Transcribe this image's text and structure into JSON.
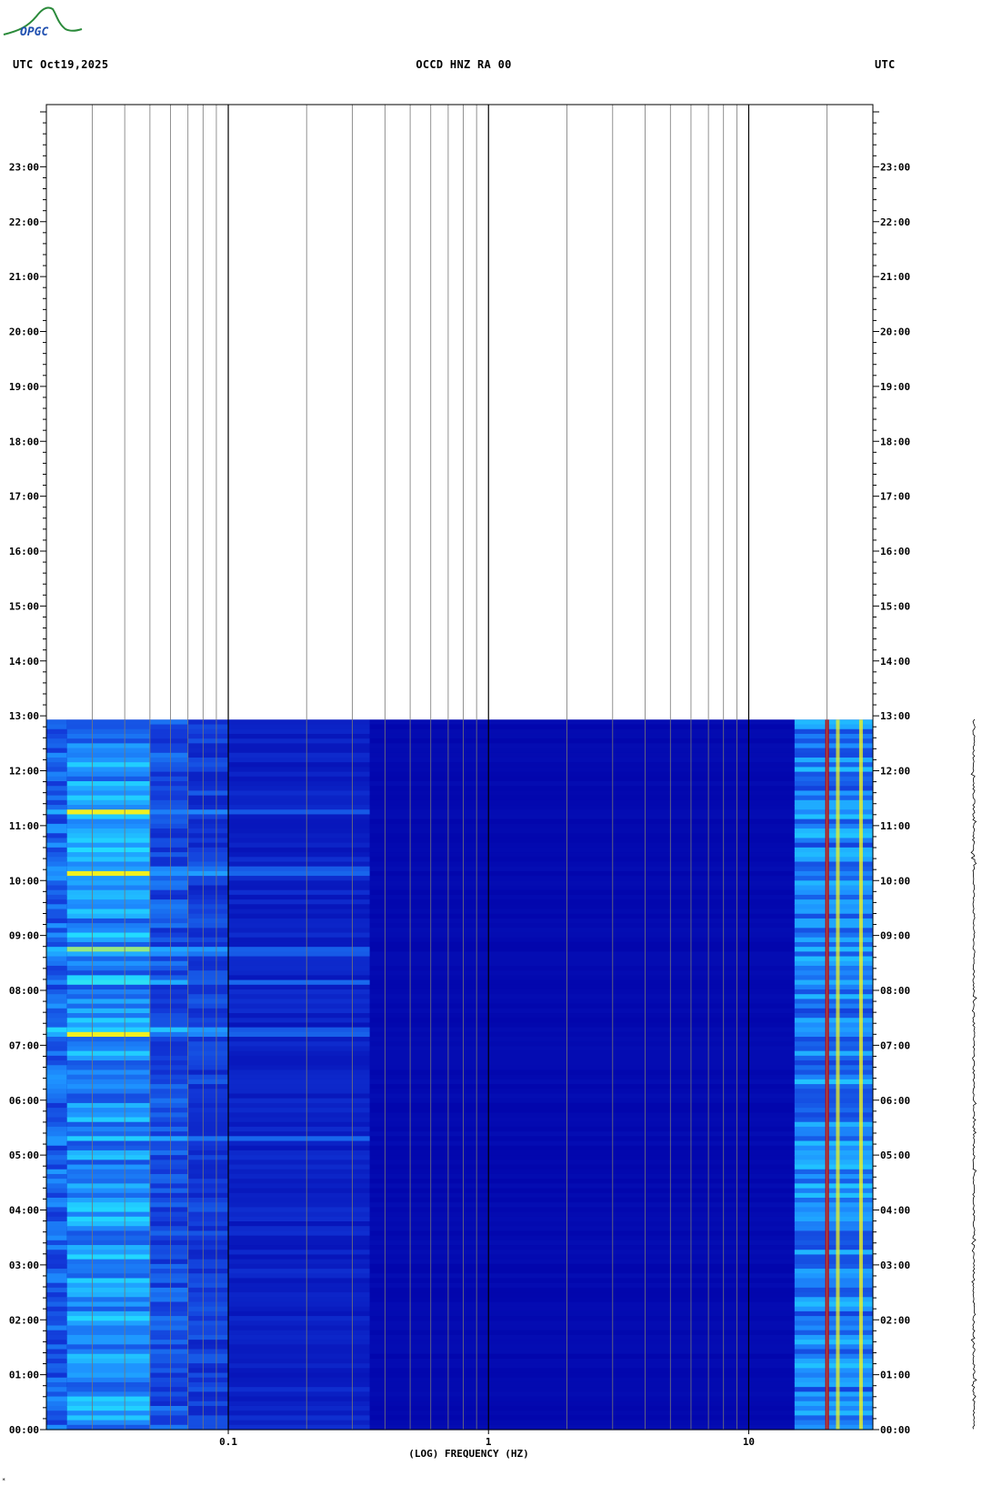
{
  "header": {
    "left": "UTC  Oct19,2025",
    "center": "OCCD HNZ RA 00",
    "right": "UTC"
  },
  "logo": {
    "text": "OPGC",
    "color": "#2a8a3a",
    "text_color": "#2050b0"
  },
  "footnote": "*",
  "chart_data": {
    "type": "heatmap",
    "title": "",
    "xlabel": "(LOG) FREQUENCY (HZ)",
    "x_scale": "log",
    "xlim": [
      0.02,
      30
    ],
    "x_ticks": [
      {
        "value": 0.1,
        "label": "0.1"
      },
      {
        "value": 1,
        "label": "1"
      },
      {
        "value": 10,
        "label": "10"
      }
    ],
    "y_ticks_left": [
      "00:00",
      "01:00",
      "02:00",
      "03:00",
      "04:00",
      "05:00",
      "06:00",
      "07:00",
      "08:00",
      "09:00",
      "10:00",
      "11:00",
      "12:00",
      "13:00",
      "14:00",
      "15:00",
      "16:00",
      "17:00",
      "18:00",
      "19:00",
      "20:00",
      "21:00",
      "22:00",
      "23:00"
    ],
    "y_ticks_right": [
      "00:00",
      "01:00",
      "02:00",
      "03:00",
      "04:00",
      "05:00",
      "06:00",
      "07:00",
      "08:00",
      "09:00",
      "10:00",
      "11:00",
      "12:00",
      "13:00",
      "14:00",
      "15:00",
      "16:00",
      "17:00",
      "18:00",
      "19:00",
      "20:00",
      "21:00",
      "22:00",
      "23:00"
    ],
    "ylim_hours": [
      0,
      24
    ],
    "data_until_hour": 12.93,
    "colors": {
      "background": "#0000a8",
      "low": "#1238d8",
      "mid": "#1e90ff",
      "cyan": "#22e0ff",
      "yellow": "#f0f020",
      "red": "#c01010"
    },
    "bands": [
      {
        "f_from": 0.02,
        "f_to": 0.024,
        "level": 0.45
      },
      {
        "f_from": 0.024,
        "f_to": 0.05,
        "level": 0.6
      },
      {
        "f_from": 0.05,
        "f_to": 0.07,
        "level": 0.38
      },
      {
        "f_from": 0.07,
        "f_to": 0.1,
        "level": 0.3
      },
      {
        "f_from": 0.1,
        "f_to": 0.35,
        "level": 0.18
      },
      {
        "f_from": 0.35,
        "f_to": 15,
        "level": 0.05
      },
      {
        "f_from": 15,
        "f_to": 30,
        "level": 0.55
      }
    ],
    "lines": [
      {
        "freq": 20,
        "level": 1.0
      },
      {
        "freq": 22,
        "level": 0.75
      },
      {
        "freq": 27,
        "level": 0.8
      }
    ],
    "events_hours": [
      8.15,
      8.7,
      10.2,
      11.25,
      7.25,
      5.3
    ]
  }
}
